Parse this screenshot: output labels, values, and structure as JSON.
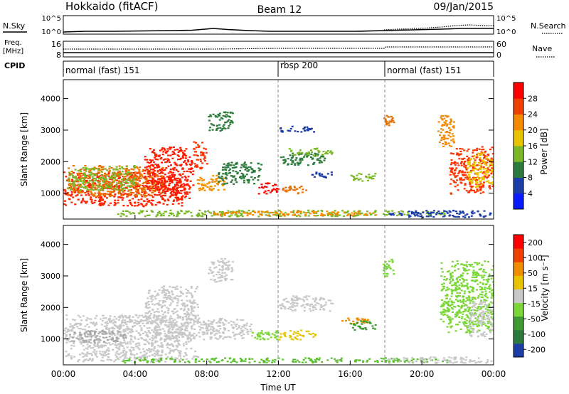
{
  "header": {
    "station": "Hokkaido (fitACF)",
    "beam": "Beam 12",
    "date": "09/Jan/2015"
  },
  "summary": {
    "nsky_label": "N.Sky",
    "nsky_ticks": [
      "10^5",
      "10^0"
    ],
    "nsearch_label": "N.Search",
    "freq_label_line1": "Freq.",
    "freq_label_line2": "[MHz]",
    "freq_ticks": [
      "16",
      "8"
    ],
    "nave_label": "Nave",
    "nave_ticks": [
      "60",
      "0"
    ],
    "cpid_label": "CPID",
    "cpid_segments": [
      {
        "label": "normal (fast) 151"
      },
      {
        "label": "rbsp 200"
      },
      {
        "label": "normal (fast) 151"
      }
    ]
  },
  "chart_data": [
    {
      "type": "heatmap",
      "panel": "power",
      "xlabel": "",
      "ylabel": "Slant Range [km]",
      "x_ticks": [
        "00:00",
        "04:00",
        "08:00",
        "12:00",
        "16:00",
        "20:00",
        "00:00"
      ],
      "y_ticks": [
        "1000",
        "2000",
        "3000",
        "4000"
      ],
      "xlim_hours": [
        0,
        24
      ],
      "ylim_km": [
        180,
        4600
      ],
      "colorbar": {
        "label": "Power [dB]",
        "ticks": [
          "4",
          "8",
          "12",
          "16",
          "20",
          "24",
          "28"
        ],
        "colors": [
          "#0a1aff",
          "#1c3ca8",
          "#2c7a3c",
          "#7ab828",
          "#e8c400",
          "#f58a00",
          "#f04000",
          "#ff0000"
        ]
      },
      "mode_boundaries_hours": [
        12.0,
        18.0
      ],
      "echo_regions": [
        {
          "t0": 0.0,
          "t1": 7.0,
          "r0": 600,
          "r1": 1700,
          "color": "#ff2200"
        },
        {
          "t0": 0.2,
          "t1": 5.5,
          "r0": 900,
          "r1": 1900,
          "color": "#e87000"
        },
        {
          "t0": 0.2,
          "t1": 4.0,
          "r0": 1100,
          "r1": 1900,
          "color": "#7ab828"
        },
        {
          "t0": 4.5,
          "t1": 7.2,
          "r0": 1000,
          "r1": 2500,
          "color": "#ff1a00"
        },
        {
          "t0": 7.2,
          "t1": 8.0,
          "r0": 1800,
          "r1": 2700,
          "color": "#ff3300"
        },
        {
          "t0": 7.4,
          "t1": 9.0,
          "r0": 1100,
          "r1": 1600,
          "color": "#f09000"
        },
        {
          "t0": 8.6,
          "t1": 11.0,
          "r0": 1300,
          "r1": 2000,
          "color": "#2c7a3c"
        },
        {
          "t0": 8.0,
          "t1": 9.4,
          "r0": 3000,
          "r1": 3600,
          "color": "#2c7a3c"
        },
        {
          "t0": 10.8,
          "t1": 12.0,
          "r0": 1000,
          "r1": 1350,
          "color": "#ff0000"
        },
        {
          "t0": 12.2,
          "t1": 13.5,
          "r0": 1000,
          "r1": 1250,
          "color": "#e87000"
        },
        {
          "t0": 12.0,
          "t1": 14.6,
          "r0": 1900,
          "r1": 2300,
          "color": "#2c7a3c"
        },
        {
          "t0": 12.5,
          "t1": 15.0,
          "r0": 2200,
          "r1": 2450,
          "color": "#7ab828"
        },
        {
          "t0": 12.0,
          "t1": 14.0,
          "r0": 2950,
          "r1": 3150,
          "color": "#1c3ca8"
        },
        {
          "t0": 13.8,
          "t1": 15.0,
          "r0": 1500,
          "r1": 1700,
          "color": "#1c3ca8"
        },
        {
          "t0": 16.0,
          "t1": 17.4,
          "r0": 1400,
          "r1": 1650,
          "color": "#7ab828"
        },
        {
          "t0": 17.8,
          "t1": 18.4,
          "r0": 3000,
          "r1": 3500,
          "color": "#e87000"
        },
        {
          "t0": 21.5,
          "t1": 24.0,
          "r0": 1000,
          "r1": 2500,
          "color": "#ff3300"
        },
        {
          "t0": 22.5,
          "t1": 24.0,
          "r0": 1200,
          "r1": 2300,
          "color": "#e8c400"
        },
        {
          "t0": 20.8,
          "t1": 21.8,
          "r0": 2500,
          "r1": 3500,
          "color": "#f58a00"
        },
        {
          "t0": 3.0,
          "t1": 21.5,
          "r0": 280,
          "r1": 480,
          "color": "#7ab828"
        },
        {
          "t0": 8.0,
          "t1": 18.0,
          "r0": 300,
          "r1": 450,
          "color": "#f58a00"
        },
        {
          "t0": 18.0,
          "t1": 24.0,
          "r0": 250,
          "r1": 480,
          "color": "#1c3ca8"
        }
      ]
    },
    {
      "type": "heatmap",
      "panel": "velocity",
      "xlabel": "Time UT",
      "ylabel": "Slant Range [km]",
      "x_ticks": [
        "00:00",
        "04:00",
        "08:00",
        "12:00",
        "16:00",
        "20:00",
        "00:00"
      ],
      "y_ticks": [
        "1000",
        "2000",
        "3000",
        "4000"
      ],
      "xlim_hours": [
        0,
        24
      ],
      "ylim_km": [
        180,
        4600
      ],
      "colorbar": {
        "label": "Velocity [m s⁻¹]",
        "ticks": [
          "200",
          "100",
          "50",
          "15",
          "-15",
          "-50",
          "-100",
          "-200"
        ],
        "colors": [
          "#1c3ca8",
          "#2c7a3c",
          "#3f9a34",
          "#7bd638",
          "#c8c8c8",
          "#e8c400",
          "#f08c00",
          "#f04000",
          "#ff0000"
        ]
      },
      "mode_boundaries_hours": [
        12.0,
        18.0
      ],
      "echo_regions": [
        {
          "t0": 0.0,
          "t1": 7.2,
          "r0": 600,
          "r1": 1800,
          "color": "#c8c8c8"
        },
        {
          "t0": 4.5,
          "t1": 7.5,
          "r0": 1000,
          "r1": 2700,
          "color": "#c8c8c8"
        },
        {
          "t0": 0.2,
          "t1": 3.5,
          "r0": 900,
          "r1": 1300,
          "color": "#a8a8a8"
        },
        {
          "t0": 8.0,
          "t1": 9.4,
          "r0": 2800,
          "r1": 3600,
          "color": "#c8c8c8"
        },
        {
          "t0": 7.5,
          "t1": 10.5,
          "r0": 1000,
          "r1": 1700,
          "color": "#c8c8c8"
        },
        {
          "t0": 10.5,
          "t1": 12.0,
          "r0": 1000,
          "r1": 1350,
          "color": "#7bd638"
        },
        {
          "t0": 12.0,
          "t1": 14.0,
          "r0": 1000,
          "r1": 1300,
          "color": "#e8c400"
        },
        {
          "t0": 12.0,
          "t1": 15.0,
          "r0": 1900,
          "r1": 2400,
          "color": "#c8c8c8"
        },
        {
          "t0": 15.5,
          "t1": 17.0,
          "r0": 1500,
          "r1": 1700,
          "color": "#f08c00"
        },
        {
          "t0": 16.0,
          "t1": 17.4,
          "r0": 1300,
          "r1": 1600,
          "color": "#3f9a34"
        },
        {
          "t0": 17.8,
          "t1": 18.4,
          "r0": 3000,
          "r1": 3600,
          "color": "#7bd638"
        },
        {
          "t0": 21.0,
          "t1": 24.0,
          "r0": 1200,
          "r1": 3500,
          "color": "#7bd638"
        },
        {
          "t0": 22.5,
          "t1": 24.0,
          "r0": 1100,
          "r1": 2200,
          "color": "#c8c8c8"
        },
        {
          "t0": 0.0,
          "t1": 7.5,
          "r0": 300,
          "r1": 650,
          "color": "#c8c8c8"
        },
        {
          "t0": 3.0,
          "t1": 21.5,
          "r0": 270,
          "r1": 420,
          "color": "#5bc030"
        },
        {
          "t0": 18.0,
          "t1": 24.0,
          "r0": 250,
          "r1": 450,
          "color": "#c8c8c8"
        }
      ]
    }
  ]
}
